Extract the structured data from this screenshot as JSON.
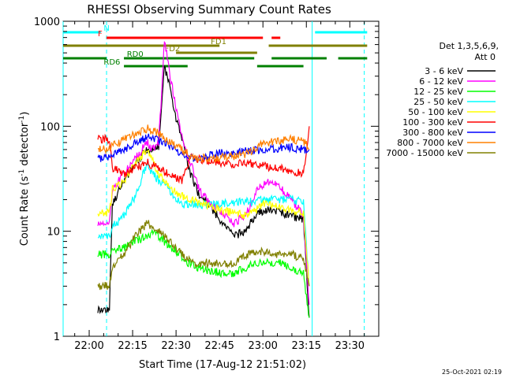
{
  "chart_data": {
    "type": "line",
    "title": "RHESSI Observing Summary Count Rates",
    "xlabel": "Start Time (17-Aug-12 21:51:02)",
    "ylabel_main": "Count Rate (s",
    "ylabel_sup1": "-1",
    "ylabel_mid": " detector",
    "ylabel_sup2": "-1",
    "ylabel_end": ")",
    "x_range_min": [
      -9,
      100
    ],
    "y_log_range": [
      1,
      1000
    ],
    "x_ticks": [
      {
        "min": 0,
        "label": "22:00"
      },
      {
        "min": 15,
        "label": "22:15"
      },
      {
        "min": 30,
        "label": "22:30"
      },
      {
        "min": 45,
        "label": "22:45"
      },
      {
        "min": 60,
        "label": "23:00"
      },
      {
        "min": 75,
        "label": "23:15"
      },
      {
        "min": 90,
        "label": "23:30"
      }
    ],
    "y_ticks": [
      {
        "v": 1,
        "label": "1"
      },
      {
        "v": 10,
        "label": "10"
      },
      {
        "v": 100,
        "label": "100"
      },
      {
        "v": 1000,
        "label": "1000"
      }
    ],
    "legend_header": "Det 1,3,5,6,9,",
    "legend_header2": "Att 0",
    "series": [
      {
        "name": "3 - 6 keV",
        "color": "#000000",
        "x": [
          3,
          7,
          8,
          12,
          16,
          20,
          22,
          24,
          26,
          28,
          30,
          33,
          35,
          38,
          42,
          46,
          50,
          54,
          58,
          62,
          66,
          70,
          74,
          76
        ],
        "y": [
          1.8,
          1.8,
          18,
          30,
          45,
          60,
          60,
          65,
          360,
          230,
          120,
          60,
          35,
          22,
          17,
          12,
          9,
          10,
          15,
          16,
          15,
          14,
          13,
          1.5
        ]
      },
      {
        "name": "6 - 12 keV",
        "color": "#ff00ff",
        "x": [
          3,
          7,
          8,
          12,
          16,
          20,
          22,
          24,
          26,
          28,
          30,
          33,
          35,
          38,
          42,
          46,
          50,
          54,
          58,
          62,
          66,
          70,
          74,
          76
        ],
        "y": [
          12,
          12,
          25,
          35,
          50,
          70,
          60,
          70,
          650,
          300,
          150,
          60,
          45,
          25,
          18,
          15,
          12,
          14,
          25,
          30,
          26,
          20,
          14,
          2
        ]
      },
      {
        "name": "12 - 25 keV",
        "color": "#00ff00",
        "x": [
          3,
          7,
          8,
          12,
          16,
          20,
          22,
          26,
          30,
          34,
          38,
          42,
          46,
          50,
          54,
          58,
          62,
          66,
          70,
          74,
          76
        ],
        "y": [
          6,
          6,
          6.5,
          7,
          8,
          9,
          10,
          8,
          6.5,
          5,
          4.5,
          4.2,
          4,
          4,
          4.5,
          5,
          5,
          5,
          4.5,
          4,
          1.5
        ]
      },
      {
        "name": "25 - 50 keV",
        "color": "#00ffff",
        "x": [
          3,
          7,
          8,
          12,
          16,
          20,
          22,
          24,
          26,
          28,
          30,
          33,
          35,
          40,
          45,
          50,
          55,
          60,
          65,
          70,
          74,
          76
        ],
        "y": [
          9,
          9,
          11,
          14,
          22,
          45,
          35,
          30,
          28,
          24,
          20,
          18,
          18,
          18,
          18,
          19,
          19,
          20,
          20,
          20,
          19,
          3
        ]
      },
      {
        "name": "50 - 100 keV",
        "color": "#ffff00",
        "x": [
          3,
          7,
          8,
          12,
          16,
          20,
          24,
          28,
          32,
          35,
          40,
          45,
          50,
          55,
          60,
          65,
          70,
          74,
          76
        ],
        "y": [
          15,
          15,
          25,
          30,
          45,
          60,
          35,
          25,
          22,
          20,
          18,
          16,
          15,
          14,
          18,
          17,
          16,
          15,
          3
        ]
      },
      {
        "name": "100 - 300 keV",
        "color": "#ff0000",
        "x": [
          3,
          7,
          8,
          12,
          16,
          20,
          24,
          28,
          32,
          35,
          40,
          45,
          50,
          55,
          60,
          65,
          70,
          74,
          76
        ],
        "y": [
          75,
          75,
          40,
          35,
          40,
          45,
          40,
          35,
          30,
          50,
          48,
          45,
          44,
          45,
          42,
          40,
          38,
          35,
          100
        ]
      },
      {
        "name": "300 - 800 keV",
        "color": "#0000ff",
        "x": [
          3,
          7,
          8,
          12,
          16,
          20,
          24,
          28,
          32,
          36,
          40,
          45,
          50,
          55,
          60,
          65,
          70,
          74,
          76
        ],
        "y": [
          50,
          50,
          55,
          60,
          70,
          80,
          75,
          65,
          55,
          50,
          52,
          55,
          56,
          58,
          60,
          62,
          63,
          60,
          60
        ]
      },
      {
        "name": "800 - 7000 keV",
        "color": "#ff8000",
        "x": [
          3,
          7,
          8,
          12,
          16,
          20,
          24,
          28,
          32,
          36,
          40,
          45,
          50,
          55,
          60,
          65,
          70,
          74,
          76
        ],
        "y": [
          60,
          60,
          65,
          75,
          85,
          95,
          85,
          70,
          60,
          50,
          50,
          50,
          52,
          55,
          70,
          72,
          75,
          73,
          60
        ]
      },
      {
        "name": "7000 - 15000 keV",
        "color": "#808000",
        "x": [
          3,
          7,
          8,
          12,
          16,
          20,
          24,
          28,
          32,
          36,
          40,
          45,
          50,
          55,
          60,
          65,
          70,
          74,
          76
        ],
        "y": [
          3,
          3,
          4.5,
          6,
          9,
          12,
          10,
          8,
          6,
          5,
          5,
          5,
          5,
          6,
          6.5,
          6,
          6,
          5.5,
          3
        ]
      }
    ],
    "flag_lines": [
      {
        "label": "N",
        "color": "#00ffff",
        "level": 0,
        "segments": [
          [
            -9,
            4
          ],
          [
            78,
            96
          ]
        ],
        "label_at": 5
      },
      {
        "label": "F",
        "color": "#ff0000",
        "level": 1,
        "segments": [
          [
            6,
            60
          ],
          [
            63,
            66
          ]
        ],
        "label_at": 3
      },
      {
        "label": "FD1",
        "color": "#808000",
        "level": 2,
        "segments": [
          [
            -9,
            45
          ],
          [
            62,
            96
          ]
        ],
        "label_at": 42
      },
      {
        "label": "FD2",
        "color": "#808000",
        "level": 3,
        "segments": [
          [
            30,
            58
          ]
        ],
        "label_at": 26
      },
      {
        "label": "RD0",
        "color": "#008000",
        "level": 4,
        "segments": [
          [
            -9,
            6
          ],
          [
            12,
            57
          ],
          [
            63,
            82
          ],
          [
            86,
            96
          ]
        ],
        "label_at": 13
      },
      {
        "label": "RD6",
        "color": "#008000",
        "level": 5,
        "segments": [
          [
            12,
            34
          ],
          [
            58,
            74
          ]
        ],
        "label_at": 5
      }
    ],
    "solid_vlines": [
      -9,
      77
    ],
    "dashed_vlines": [
      6,
      95
    ],
    "grid": false,
    "legend_position": "right",
    "timestamp": "25-Oct-2021 02:19"
  }
}
